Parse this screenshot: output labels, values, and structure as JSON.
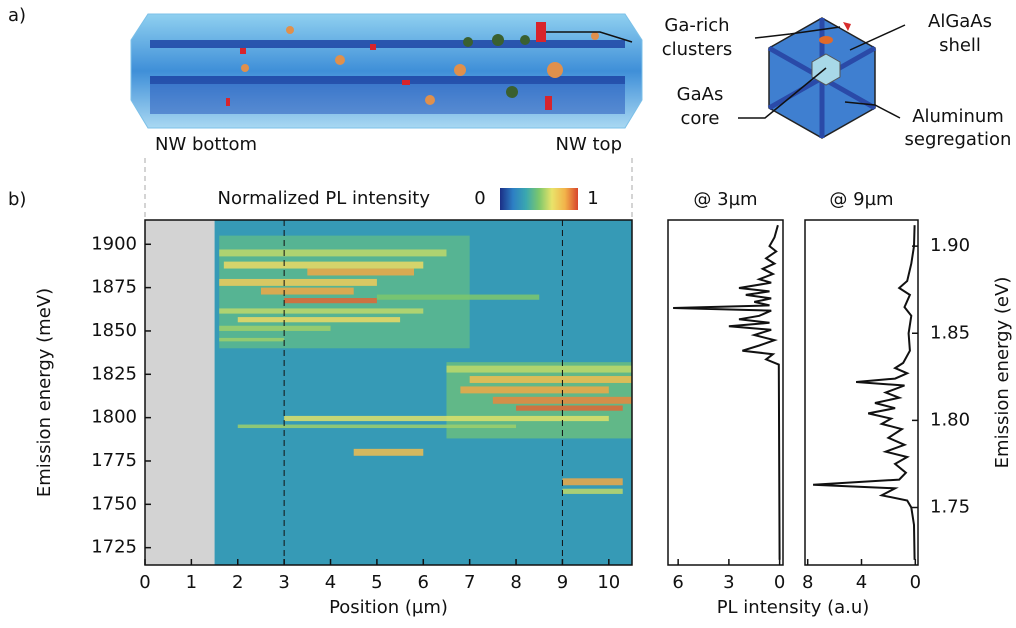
{
  "panel_a": {
    "label": "a)",
    "nw_bottom": "NW bottom",
    "nw_top": "NW top",
    "clusters": [
      "Ga-rich",
      "clusters"
    ],
    "shell": [
      "AlGaAs",
      "shell"
    ],
    "core": [
      "GaAs",
      "core"
    ],
    "segregation": [
      "Aluminum",
      "segregation"
    ]
  },
  "panel_b_label": "b)",
  "spectra_xlabel": "PL intensity (a.u)",
  "chart_data": [
    {
      "type": "heatmap",
      "xlabel": "Position (µm)",
      "ylabel": "Emission energy (meV)",
      "xlim": [
        0,
        10.5
      ],
      "ylim": [
        1715,
        1914
      ],
      "xticks": [
        0,
        1,
        2,
        3,
        4,
        5,
        6,
        7,
        8,
        9,
        10
      ],
      "yticks": [
        1725,
        1750,
        1775,
        1800,
        1825,
        1850,
        1875,
        1900
      ],
      "data_x_range": [
        1.5,
        10.5
      ],
      "dashed_x": [
        3,
        9
      ],
      "colorbar_title": "Normalized PL intensity",
      "colorbar_ticks": [
        0,
        1
      ],
      "colormap": [
        "#1b2f86",
        "#2d7fc4",
        "#3aa7b0",
        "#7cc76c",
        "#e9e36a",
        "#f2b34a",
        "#d8452c"
      ],
      "streaks": [
        {
          "x": [
            1.6,
            7
          ],
          "y": [
            1840,
            1905
          ],
          "level": 0.42
        },
        {
          "x": [
            6.5,
            10.5
          ],
          "y": [
            1788,
            1832
          ],
          "level": 0.45
        },
        {
          "x": [
            1.6,
            6.5
          ],
          "y": [
            1893,
            1897
          ],
          "level": 0.6
        },
        {
          "x": [
            1.7,
            6
          ],
          "y": [
            1886,
            1890
          ],
          "level": 0.7
        },
        {
          "x": [
            3.5,
            5.8
          ],
          "y": [
            1882,
            1886
          ],
          "level": 0.85
        },
        {
          "x": [
            1.6,
            5
          ],
          "y": [
            1876,
            1880
          ],
          "level": 0.75
        },
        {
          "x": [
            2.5,
            4.5
          ],
          "y": [
            1871,
            1875
          ],
          "level": 0.85
        },
        {
          "x": [
            3,
            5
          ],
          "y": [
            1866,
            1869
          ],
          "level": 0.95
        },
        {
          "x": [
            1.6,
            6
          ],
          "y": [
            1860,
            1863
          ],
          "level": 0.6
        },
        {
          "x": [
            2,
            5.5
          ],
          "y": [
            1855,
            1858
          ],
          "level": 0.7
        },
        {
          "x": [
            1.6,
            4
          ],
          "y": [
            1850,
            1853
          ],
          "level": 0.55
        },
        {
          "x": [
            1.6,
            3
          ],
          "y": [
            1844,
            1846
          ],
          "level": 0.55
        },
        {
          "x": [
            5,
            8.5
          ],
          "y": [
            1868,
            1871
          ],
          "level": 0.5
        },
        {
          "x": [
            6.5,
            10.5
          ],
          "y": [
            1826,
            1830
          ],
          "level": 0.6
        },
        {
          "x": [
            7,
            10.5
          ],
          "y": [
            1820,
            1824
          ],
          "level": 0.8
        },
        {
          "x": [
            6.8,
            10
          ],
          "y": [
            1814,
            1818
          ],
          "level": 0.85
        },
        {
          "x": [
            7.5,
            10.5
          ],
          "y": [
            1808,
            1812
          ],
          "level": 0.9
        },
        {
          "x": [
            8,
            10.3
          ],
          "y": [
            1804,
            1807
          ],
          "level": 0.95
        },
        {
          "x": [
            3,
            10
          ],
          "y": [
            1798,
            1801
          ],
          "level": 0.65
        },
        {
          "x": [
            2,
            8
          ],
          "y": [
            1794,
            1796
          ],
          "level": 0.55
        },
        {
          "x": [
            4.5,
            6
          ],
          "y": [
            1778,
            1782
          ],
          "level": 0.8
        },
        {
          "x": [
            9,
            10.3
          ],
          "y": [
            1761,
            1765
          ],
          "level": 0.85
        },
        {
          "x": [
            9,
            10.3
          ],
          "y": [
            1756,
            1759
          ],
          "level": 0.6
        }
      ]
    },
    {
      "type": "spectrum",
      "title": "@ 3µm",
      "xlim": [
        6.6,
        -0.2
      ],
      "xticks": [
        6,
        3,
        0
      ],
      "ylim": [
        1.717,
        1.915
      ],
      "color": "#111111",
      "x": [
        1.912,
        1.905,
        1.9,
        1.897,
        1.893,
        1.89,
        1.887,
        1.884,
        1.881,
        1.879,
        1.876,
        1.874,
        1.872,
        1.87,
        1.868,
        1.866,
        1.8645,
        1.863,
        1.86,
        1.858,
        1.856,
        1.854,
        1.852,
        1.849,
        1.846,
        1.843,
        1.84,
        1.838,
        1.835,
        1.832,
        1.72
      ],
      "values": [
        0.1,
        0.3,
        0.6,
        0.2,
        0.8,
        0.3,
        1,
        0.4,
        1.2,
        0.5,
        2.4,
        0.6,
        2,
        0.5,
        1.5,
        0.6,
        6.3,
        0.5,
        1.2,
        2.4,
        0.6,
        3,
        0.5,
        1.5,
        0.3,
        1.2,
        2.2,
        0.4,
        0.8,
        0.05,
        0
      ]
    },
    {
      "type": "spectrum",
      "title": "@ 9µm",
      "xlim": [
        8.2,
        -0.2
      ],
      "xticks": [
        8,
        4,
        0
      ],
      "ylim": [
        1.717,
        1.915
      ],
      "ylabel": "Emission energy (eV)",
      "color": "#111111",
      "yticks": [
        {
          "value": 1.9,
          "label": "1.90"
        },
        1.85,
        {
          "value": 1.8,
          "label": "1.80"
        },
        1.75
      ],
      "x": [
        1.912,
        1.9,
        1.89,
        1.88,
        1.876,
        1.872,
        1.865,
        1.86,
        1.85,
        1.84,
        1.833,
        1.83,
        1.827,
        1.824,
        1.822,
        1.82,
        1.816,
        1.813,
        1.81,
        1.807,
        1.804,
        1.801,
        1.798,
        1.795,
        1.79,
        1.786,
        1.782,
        1.779,
        1.775,
        1.77,
        1.766,
        1.763,
        1.761,
        1.757,
        1.754,
        1.75,
        1.74,
        1.72
      ],
      "values": [
        0.05,
        0.1,
        0.3,
        0.6,
        1.2,
        0.4,
        0.8,
        0.3,
        0.5,
        0.4,
        0.9,
        1.5,
        0.6,
        1.5,
        4.4,
        0.8,
        2.2,
        1.2,
        3,
        1.5,
        3.5,
        1.8,
        2.5,
        1,
        2,
        0.8,
        2.2,
        0.6,
        1.5,
        0.7,
        1.2,
        7.6,
        1.5,
        2.5,
        0.6,
        0.3,
        0.1,
        0.05
      ]
    }
  ]
}
